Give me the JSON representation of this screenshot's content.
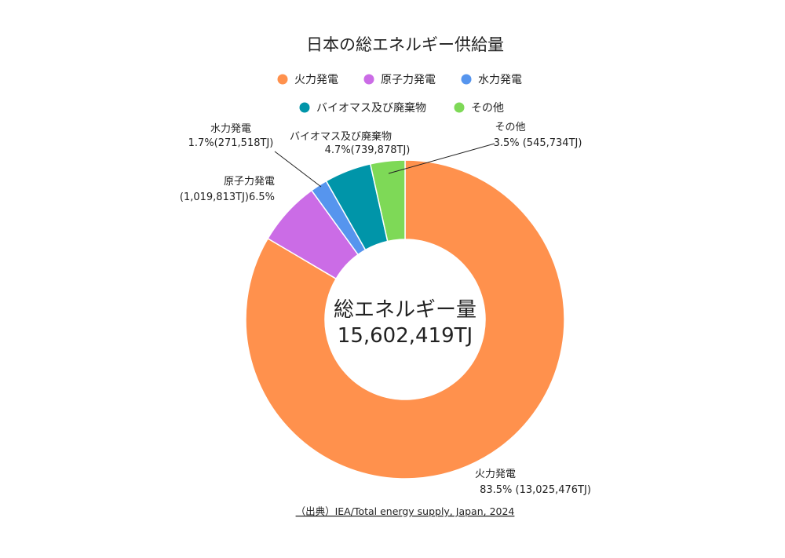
{
  "chart_data": {
    "type": "pie",
    "variant": "donut",
    "title": "日本の総エネルギー供給量",
    "unit": "TJ",
    "center_label": {
      "line1": "総エネルギー量",
      "line2": "15,602,419TJ"
    },
    "slices": [
      {
        "name": "火力発電",
        "value": 13025476,
        "percent": 83.5,
        "color": "#FF914D",
        "label_lines": [
          "火力発電",
          "83.5% (13,025,476TJ)"
        ]
      },
      {
        "name": "原子力発電",
        "value": 1019813,
        "percent": 6.5,
        "color": "#CB6CE6",
        "label_lines": [
          "原子力発電",
          "(1,019,813TJ)6.5%"
        ]
      },
      {
        "name": "水力発電",
        "value": 271518,
        "percent": 1.7,
        "color": "#5695EE",
        "label_lines": [
          "水力発電",
          "1.7%(271,518TJ)"
        ]
      },
      {
        "name": "バイオマス及び廃棄物",
        "value": 739878,
        "percent": 4.7,
        "color": "#0095A9",
        "label_lines": [
          "バイオマス及び廃棄物",
          "4.7%(739,878TJ)"
        ]
      },
      {
        "name": "その他",
        "value": 545734,
        "percent": 3.5,
        "color": "#7ED957",
        "label_lines": [
          "その他",
          "3.5% (545,734TJ)"
        ]
      }
    ],
    "legend_order": [
      "火力発電",
      "原子力発電",
      "水力発電",
      "バイオマス及び廃棄物",
      "その他"
    ],
    "legend_position": "top",
    "source": "（出典）IEA/Total energy supply, Japan, 2024"
  }
}
